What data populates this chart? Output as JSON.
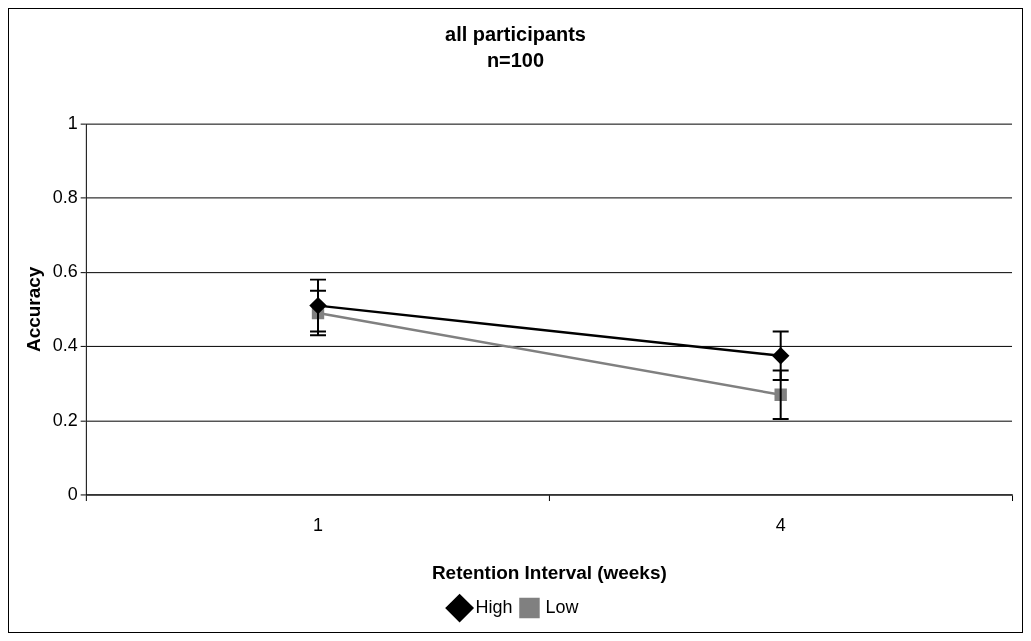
{
  "chart_data": {
    "type": "line",
    "title": "all participants",
    "subtitle": "n=100",
    "xlabel": "Retention Interval (weeks)",
    "ylabel": "Accuracy",
    "categories": [
      "1",
      "4"
    ],
    "series": [
      {
        "name": "High",
        "color": "#000000",
        "values": [
          0.51,
          0.375
        ],
        "errors": [
          0.07,
          0.065
        ],
        "marker": "diamond"
      },
      {
        "name": "Low",
        "color": "#808080",
        "values": [
          0.49,
          0.27
        ],
        "errors": [
          0.06,
          0.065
        ],
        "marker": "square"
      }
    ],
    "ylim": [
      0,
      1
    ],
    "yticks": [
      0,
      0.2,
      0.4,
      0.6,
      0.8,
      1
    ],
    "grid": "y",
    "legend": "bottom",
    "line_style": "solid"
  }
}
